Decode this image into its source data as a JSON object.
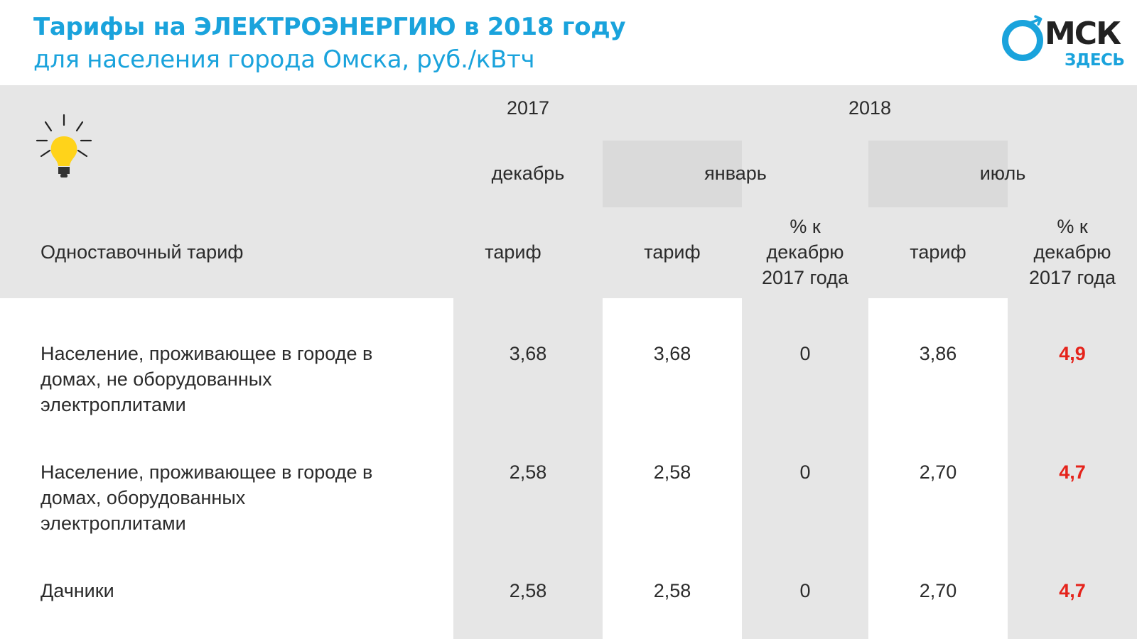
{
  "header": {
    "title": "Тарифы на ЭЛЕКТРОЭНЕРГИЮ в 2018 году",
    "subtitle": "для населения города Омска, руб./кВтч"
  },
  "logo": {
    "main": "МСК",
    "sub": "ЗДЕСЬ"
  },
  "icons": {
    "bulb": "light-bulb-icon"
  },
  "table": {
    "years": {
      "y2017": "2017",
      "y2018": "2018"
    },
    "months": {
      "december": "декабрь",
      "january": "январь",
      "july": "июль"
    },
    "row_header": "Одноставочный тариф",
    "col_labels": {
      "dec_tariff": "тариф",
      "jan_tariff": "тариф",
      "jan_pct": "% к декабрю 2017 года",
      "jul_tariff": "тариф",
      "jul_pct": "% к декабрю 2017 года"
    },
    "rows": [
      {
        "label": "Население, проживающее в городе в домах, не оборудованных электроплитами",
        "dec": "3,68",
        "jan": "3,68",
        "jan_pct": "0",
        "jul": "3,86",
        "jul_pct": "4,9"
      },
      {
        "label": "Население, проживающее в городе в домах, оборудованных электроплитами",
        "dec": "2,58",
        "jan": "2,58",
        "jan_pct": "0",
        "jul": "2,70",
        "jul_pct": "4,7"
      },
      {
        "label": "Дачники",
        "dec": "2,58",
        "jan": "2,58",
        "jan_pct": "0",
        "jul": "2,70",
        "jul_pct": "4,7"
      }
    ]
  },
  "colors": {
    "accent": "#1aa3dc",
    "highlight": "#e5231b",
    "grey": "#e6e6e6"
  }
}
